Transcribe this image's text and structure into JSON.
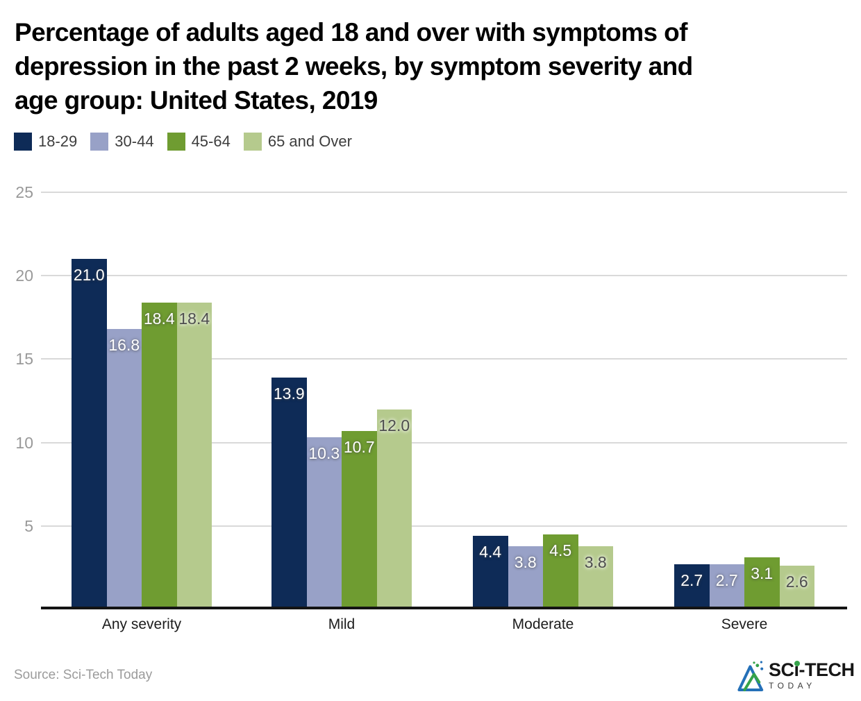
{
  "title": {
    "full": "Percentage of adults aged 18 and over with symptoms of depression in the past 2 weeks, by symptom severity and age group: United States, 2019",
    "lines": [
      "Percentage of adults aged 18 and over with symptoms of",
      "depression in the past 2 weeks, by symptom severity and",
      "age group: United States, 2019"
    ]
  },
  "legend": {
    "items": [
      {
        "label": "18-29",
        "color": "#0e2b57"
      },
      {
        "label": "30-44",
        "color": "#98a1c7"
      },
      {
        "label": "45-64",
        "color": "#6f9c31"
      },
      {
        "label": "65 and Over",
        "color": "#b5ca8d"
      }
    ]
  },
  "chart_data": {
    "type": "bar",
    "categories": [
      "Any severity",
      "Mild",
      "Moderate",
      "Severe"
    ],
    "series": [
      {
        "name": "18-29",
        "color": "#0e2b57",
        "label_style": "light",
        "values": [
          21.0,
          13.9,
          4.4,
          2.7
        ]
      },
      {
        "name": "30-44",
        "color": "#98a1c7",
        "label_style": "light",
        "values": [
          16.8,
          10.3,
          3.8,
          2.7
        ]
      },
      {
        "name": "45-64",
        "color": "#6f9c31",
        "label_style": "light",
        "values": [
          18.4,
          10.7,
          4.5,
          3.1
        ]
      },
      {
        "name": "65 and Over",
        "color": "#b5ca8d",
        "label_style": "dark",
        "values": [
          18.4,
          12.0,
          3.8,
          2.6
        ]
      }
    ],
    "yticks": [
      5,
      10,
      15,
      20,
      25
    ],
    "ylim": [
      0,
      25
    ],
    "grid": true,
    "legend_position": "top-left",
    "value_label_format": "one-decimal",
    "grid_color": "#d9d9d9",
    "axis_color": "#141414"
  },
  "footer": {
    "source": "Source: Sci-Tech Today"
  },
  "logo": {
    "primary": "SCi-TECH",
    "secondary": "TODAY"
  }
}
